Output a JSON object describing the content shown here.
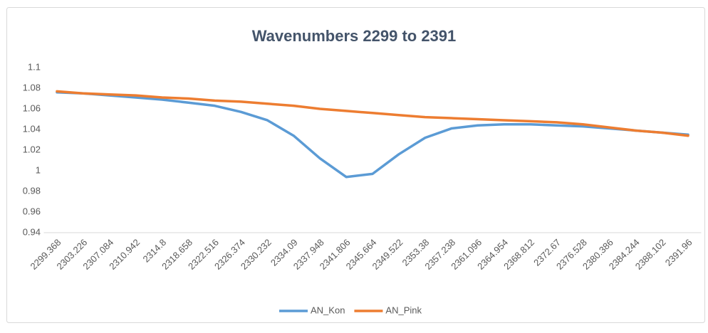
{
  "chart_data": {
    "type": "line",
    "title": "Wavenumbers 2299 to 2391",
    "categories": [
      "2299.368",
      "2303.226",
      "2307.084",
      "2310.942",
      "2314.8",
      "2318.658",
      "2322.516",
      "2326.374",
      "2330.232",
      "2334.09",
      "2337.948",
      "2341.806",
      "2345.664",
      "2349.522",
      "2353.38",
      "2357.238",
      "2361.096",
      "2364.954",
      "2368.812",
      "2372.67",
      "2376.528",
      "2380.386",
      "2384.244",
      "2388.102",
      "2391.96"
    ],
    "series": [
      {
        "name": "AN_Kon",
        "color": "#5b9bd5",
        "values": [
          1.076,
          1.075,
          1.073,
          1.071,
          1.069,
          1.066,
          1.063,
          1.057,
          1.049,
          1.034,
          1.012,
          0.994,
          0.997,
          1.016,
          1.032,
          1.041,
          1.044,
          1.045,
          1.045,
          1.044,
          1.043,
          1.041,
          1.039,
          1.037,
          1.035
        ]
      },
      {
        "name": "AN_Pink",
        "color": "#ed7d31",
        "values": [
          1.077,
          1.075,
          1.074,
          1.073,
          1.071,
          1.07,
          1.068,
          1.067,
          1.065,
          1.063,
          1.06,
          1.058,
          1.056,
          1.054,
          1.052,
          1.051,
          1.05,
          1.049,
          1.048,
          1.047,
          1.045,
          1.042,
          1.039,
          1.037,
          1.034
        ]
      }
    ],
    "ylim": [
      0.94,
      1.1
    ],
    "yticks": [
      0.94,
      0.96,
      0.98,
      1,
      1.02,
      1.04,
      1.06,
      1.08,
      1.1
    ],
    "grid": false,
    "legend": "bottom"
  }
}
